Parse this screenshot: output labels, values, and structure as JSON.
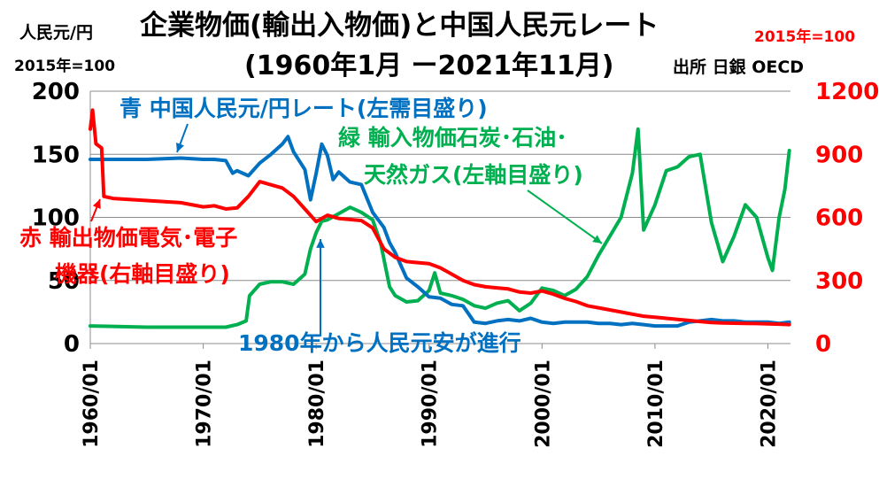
{
  "title": "企業物価(輸出入物価)と中国人民元レート",
  "period": "(1960年1月 ー2021年11月)",
  "source": "出所 日銀 OECD",
  "left_unit_line1": "人民元/円",
  "left_unit_line2": "2015年=100",
  "right_unit": "2015年=100",
  "annotations": {
    "blue": "青 中国人民元/円レート(左需目盛り)",
    "green_line1": "緑 輸入物価石炭･石油･",
    "green_line2": "天然ガス(左軸目盛り)",
    "red_line1": "赤 輸出物価電気･電子",
    "red_line2": "機器(右軸目盛り)",
    "note": "1980年から人民元安が進行"
  },
  "colors": {
    "blue": "#0070c0",
    "green": "#00b050",
    "red": "#ff0000",
    "grid": "#8c8c8c"
  },
  "chart_data": {
    "type": "line",
    "x_ticks": [
      "1960/01",
      "1970/01",
      "1980/01",
      "1990/01",
      "2000/01",
      "2010/01",
      "2020/01"
    ],
    "y_left_ticks": [
      "0",
      "50",
      "100",
      "150",
      "200"
    ],
    "y_right_ticks": [
      "0",
      "300",
      "600",
      "900",
      "1200"
    ],
    "ylim_left": [
      0,
      200
    ],
    "ylim_right": [
      0,
      1200
    ],
    "xlim": [
      1960.0,
      2022.0
    ],
    "grid": "horizontal",
    "series": [
      {
        "key": "blue",
        "axis": "left",
        "points": [
          [
            1960.0,
            146
          ],
          [
            1965.0,
            146
          ],
          [
            1968.0,
            147
          ],
          [
            1970.0,
            146
          ],
          [
            1971.0,
            146
          ],
          [
            1972.0,
            145
          ],
          [
            1972.6,
            135
          ],
          [
            1973.0,
            137
          ],
          [
            1974.0,
            133
          ],
          [
            1975.0,
            143
          ],
          [
            1976.0,
            150
          ],
          [
            1977.0,
            158
          ],
          [
            1977.5,
            164
          ],
          [
            1978.0,
            152
          ],
          [
            1979.0,
            138
          ],
          [
            1979.5,
            114
          ],
          [
            1980.0,
            135
          ],
          [
            1980.5,
            158
          ],
          [
            1981.0,
            149
          ],
          [
            1981.5,
            130
          ],
          [
            1982.0,
            136
          ],
          [
            1983.0,
            128
          ],
          [
            1984.0,
            126
          ],
          [
            1985.0,
            104
          ],
          [
            1986.0,
            92
          ],
          [
            1986.5,
            80
          ],
          [
            1987.0,
            72
          ],
          [
            1987.5,
            62
          ],
          [
            1988.0,
            52
          ],
          [
            1989.0,
            45
          ],
          [
            1990.0,
            37
          ],
          [
            1991.0,
            36
          ],
          [
            1992.0,
            31
          ],
          [
            1993.0,
            30
          ],
          [
            1994.0,
            17
          ],
          [
            1995.0,
            16
          ],
          [
            1996.0,
            18
          ],
          [
            1997.0,
            19
          ],
          [
            1998.0,
            18
          ],
          [
            1999.0,
            20
          ],
          [
            2000.0,
            17
          ],
          [
            2001.0,
            16
          ],
          [
            2002.0,
            17
          ],
          [
            2003.0,
            17
          ],
          [
            2004.0,
            17
          ],
          [
            2005.0,
            16
          ],
          [
            2006.0,
            16
          ],
          [
            2007.0,
            15
          ],
          [
            2008.0,
            16
          ],
          [
            2009.0,
            15
          ],
          [
            2010.0,
            14
          ],
          [
            2011.0,
            14
          ],
          [
            2012.0,
            14
          ],
          [
            2013.0,
            17
          ],
          [
            2014.0,
            18
          ],
          [
            2015.0,
            19
          ],
          [
            2016.0,
            18
          ],
          [
            2017.0,
            18
          ],
          [
            2018.0,
            17
          ],
          [
            2019.0,
            17
          ],
          [
            2020.0,
            17
          ],
          [
            2021.0,
            16
          ],
          [
            2021.9,
            17
          ]
        ]
      },
      {
        "key": "green",
        "axis": "left",
        "points": [
          [
            1960.0,
            14
          ],
          [
            1965.0,
            13
          ],
          [
            1970.0,
            13
          ],
          [
            1972.0,
            13
          ],
          [
            1973.0,
            15
          ],
          [
            1973.8,
            18
          ],
          [
            1974.1,
            38
          ],
          [
            1975.0,
            47
          ],
          [
            1976.0,
            49
          ],
          [
            1977.0,
            49
          ],
          [
            1978.0,
            47
          ],
          [
            1979.0,
            55
          ],
          [
            1979.5,
            75
          ],
          [
            1980.0,
            88
          ],
          [
            1980.5,
            97
          ],
          [
            1981.0,
            98
          ],
          [
            1982.0,
            103
          ],
          [
            1983.0,
            108
          ],
          [
            1984.0,
            104
          ],
          [
            1985.0,
            98
          ],
          [
            1985.7,
            80
          ],
          [
            1986.5,
            45
          ],
          [
            1987.0,
            38
          ],
          [
            1988.0,
            33
          ],
          [
            1989.0,
            34
          ],
          [
            1990.0,
            42
          ],
          [
            1990.5,
            56
          ],
          [
            1991.0,
            40
          ],
          [
            1992.0,
            38
          ],
          [
            1993.0,
            35
          ],
          [
            1994.0,
            30
          ],
          [
            1995.0,
            28
          ],
          [
            1996.0,
            32
          ],
          [
            1997.0,
            34
          ],
          [
            1998.0,
            26
          ],
          [
            1999.0,
            32
          ],
          [
            2000.0,
            44
          ],
          [
            2001.0,
            42
          ],
          [
            2002.0,
            38
          ],
          [
            2003.0,
            43
          ],
          [
            2004.0,
            53
          ],
          [
            2005.0,
            70
          ],
          [
            2006.0,
            85
          ],
          [
            2007.0,
            100
          ],
          [
            2008.0,
            135
          ],
          [
            2008.5,
            170
          ],
          [
            2009.0,
            90
          ],
          [
            2010.0,
            110
          ],
          [
            2011.0,
            137
          ],
          [
            2012.0,
            140
          ],
          [
            2013.0,
            148
          ],
          [
            2014.0,
            150
          ],
          [
            2015.0,
            96
          ],
          [
            2016.0,
            65
          ],
          [
            2017.0,
            85
          ],
          [
            2018.0,
            110
          ],
          [
            2019.0,
            100
          ],
          [
            2020.0,
            68
          ],
          [
            2020.4,
            58
          ],
          [
            2021.0,
            100
          ],
          [
            2021.5,
            122
          ],
          [
            2021.9,
            153
          ]
        ]
      },
      {
        "key": "red",
        "axis": "right",
        "points": [
          [
            1960.0,
            1020
          ],
          [
            1960.2,
            1110
          ],
          [
            1960.5,
            950
          ],
          [
            1961.0,
            930
          ],
          [
            1961.2,
            700
          ],
          [
            1962.0,
            690
          ],
          [
            1965.0,
            680
          ],
          [
            1968.0,
            670
          ],
          [
            1970.0,
            650
          ],
          [
            1971.0,
            655
          ],
          [
            1972.0,
            640
          ],
          [
            1973.0,
            645
          ],
          [
            1974.0,
            700
          ],
          [
            1975.0,
            770
          ],
          [
            1976.0,
            755
          ],
          [
            1977.0,
            740
          ],
          [
            1978.0,
            700
          ],
          [
            1979.0,
            640
          ],
          [
            1980.0,
            580
          ],
          [
            1981.0,
            610
          ],
          [
            1982.0,
            595
          ],
          [
            1983.0,
            590
          ],
          [
            1984.0,
            585
          ],
          [
            1985.0,
            550
          ],
          [
            1986.0,
            450
          ],
          [
            1987.0,
            410
          ],
          [
            1988.0,
            390
          ],
          [
            1989.0,
            385
          ],
          [
            1990.0,
            380
          ],
          [
            1991.0,
            360
          ],
          [
            1992.0,
            330
          ],
          [
            1993.0,
            300
          ],
          [
            1994.0,
            280
          ],
          [
            1995.0,
            270
          ],
          [
            1996.0,
            265
          ],
          [
            1997.0,
            260
          ],
          [
            1998.0,
            245
          ],
          [
            1999.0,
            240
          ],
          [
            2000.0,
            250
          ],
          [
            2001.0,
            235
          ],
          [
            2002.0,
            215
          ],
          [
            2003.0,
            200
          ],
          [
            2004.0,
            180
          ],
          [
            2005.0,
            170
          ],
          [
            2006.0,
            160
          ],
          [
            2007.0,
            150
          ],
          [
            2008.0,
            140
          ],
          [
            2009.0,
            130
          ],
          [
            2010.0,
            125
          ],
          [
            2011.0,
            120
          ],
          [
            2012.0,
            115
          ],
          [
            2013.0,
            110
          ],
          [
            2014.0,
            105
          ],
          [
            2015.0,
            100
          ],
          [
            2016.0,
            98
          ],
          [
            2017.0,
            97
          ],
          [
            2018.0,
            96
          ],
          [
            2019.0,
            95
          ],
          [
            2020.0,
            94
          ],
          [
            2021.0,
            92
          ],
          [
            2021.9,
            90
          ]
        ]
      }
    ]
  }
}
